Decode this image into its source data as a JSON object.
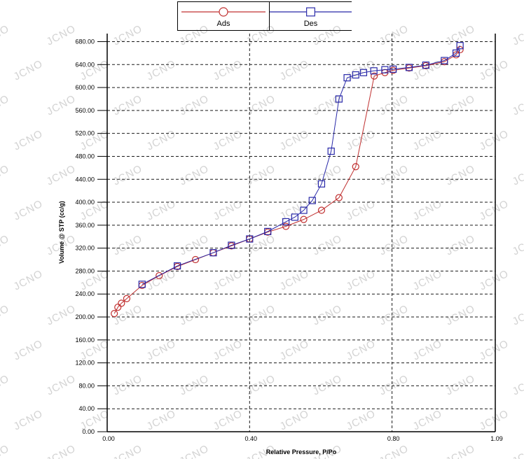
{
  "watermark": {
    "text": "JCNO",
    "color": "#d3d3d3"
  },
  "legend": {
    "items": [
      {
        "label": "Ads",
        "color": "#c03030",
        "marker": "circle"
      },
      {
        "label": "Des",
        "color": "#2828a8",
        "marker": "square"
      }
    ]
  },
  "chart_data": {
    "type": "line",
    "title": "",
    "xlabel": "Relative Pressure, P/Po",
    "ylabel": "Volume @ STP (cc/g)",
    "xlim": [
      0,
      1.09
    ],
    "ylim": [
      0,
      694
    ],
    "grid": "dashed",
    "grid_color": "#1a1a1a",
    "legend_position": "top-center",
    "xticks": [
      {
        "value": 0.0,
        "label": "0.00"
      },
      {
        "value": 0.4,
        "label": "0.40"
      },
      {
        "value": 0.8,
        "label": "0.80"
      },
      {
        "value": 1.09,
        "label": "1.09"
      }
    ],
    "yticks": [
      {
        "value": 0,
        "label": "0.00"
      },
      {
        "value": 40,
        "label": "40.00"
      },
      {
        "value": 80,
        "label": "80.00"
      },
      {
        "value": 120,
        "label": "120.00"
      },
      {
        "value": 160,
        "label": "160.00"
      },
      {
        "value": 200,
        "label": "200.00"
      },
      {
        "value": 240,
        "label": "240.00"
      },
      {
        "value": 280,
        "label": "280.00"
      },
      {
        "value": 320,
        "label": "320.00"
      },
      {
        "value": 360,
        "label": "360.00"
      },
      {
        "value": 400,
        "label": "400.00"
      },
      {
        "value": 440,
        "label": "440.00"
      },
      {
        "value": 480,
        "label": "480.00"
      },
      {
        "value": 520,
        "label": "520.00"
      },
      {
        "value": 560,
        "label": "560.00"
      },
      {
        "value": 600,
        "label": "600.00"
      },
      {
        "value": 640,
        "label": "640.00"
      },
      {
        "value": 680,
        "label": "680.00"
      }
    ],
    "series": [
      {
        "name": "Ads",
        "color": "#c03030",
        "marker": "circle",
        "points": [
          [
            0.02,
            206
          ],
          [
            0.03,
            217
          ],
          [
            0.04,
            224
          ],
          [
            0.055,
            232
          ],
          [
            0.098,
            255
          ],
          [
            0.146,
            272
          ],
          [
            0.197,
            288
          ],
          [
            0.248,
            300
          ],
          [
            0.298,
            312
          ],
          [
            0.349,
            324
          ],
          [
            0.4,
            336
          ],
          [
            0.451,
            348
          ],
          [
            0.502,
            358
          ],
          [
            0.552,
            370
          ],
          [
            0.602,
            386
          ],
          [
            0.651,
            408
          ],
          [
            0.698,
            462
          ],
          [
            0.75,
            620
          ],
          [
            0.78,
            626
          ],
          [
            0.803,
            630
          ],
          [
            0.848,
            634
          ],
          [
            0.895,
            638
          ],
          [
            0.947,
            645
          ],
          [
            0.98,
            657
          ],
          [
            0.991,
            666
          ]
        ]
      },
      {
        "name": "Des",
        "color": "#2828a8",
        "marker": "square",
        "points": [
          [
            0.098,
            257
          ],
          [
            0.197,
            289
          ],
          [
            0.298,
            312
          ],
          [
            0.349,
            325
          ],
          [
            0.4,
            336
          ],
          [
            0.451,
            349
          ],
          [
            0.502,
            366
          ],
          [
            0.527,
            374
          ],
          [
            0.552,
            386
          ],
          [
            0.576,
            403
          ],
          [
            0.602,
            432
          ],
          [
            0.629,
            489
          ],
          [
            0.651,
            580
          ],
          [
            0.674,
            617
          ],
          [
            0.698,
            622
          ],
          [
            0.72,
            626
          ],
          [
            0.749,
            629
          ],
          [
            0.78,
            631
          ],
          [
            0.803,
            632
          ],
          [
            0.848,
            635
          ],
          [
            0.895,
            639
          ],
          [
            0.947,
            647
          ],
          [
            0.98,
            660
          ],
          [
            0.991,
            673
          ]
        ]
      }
    ]
  }
}
